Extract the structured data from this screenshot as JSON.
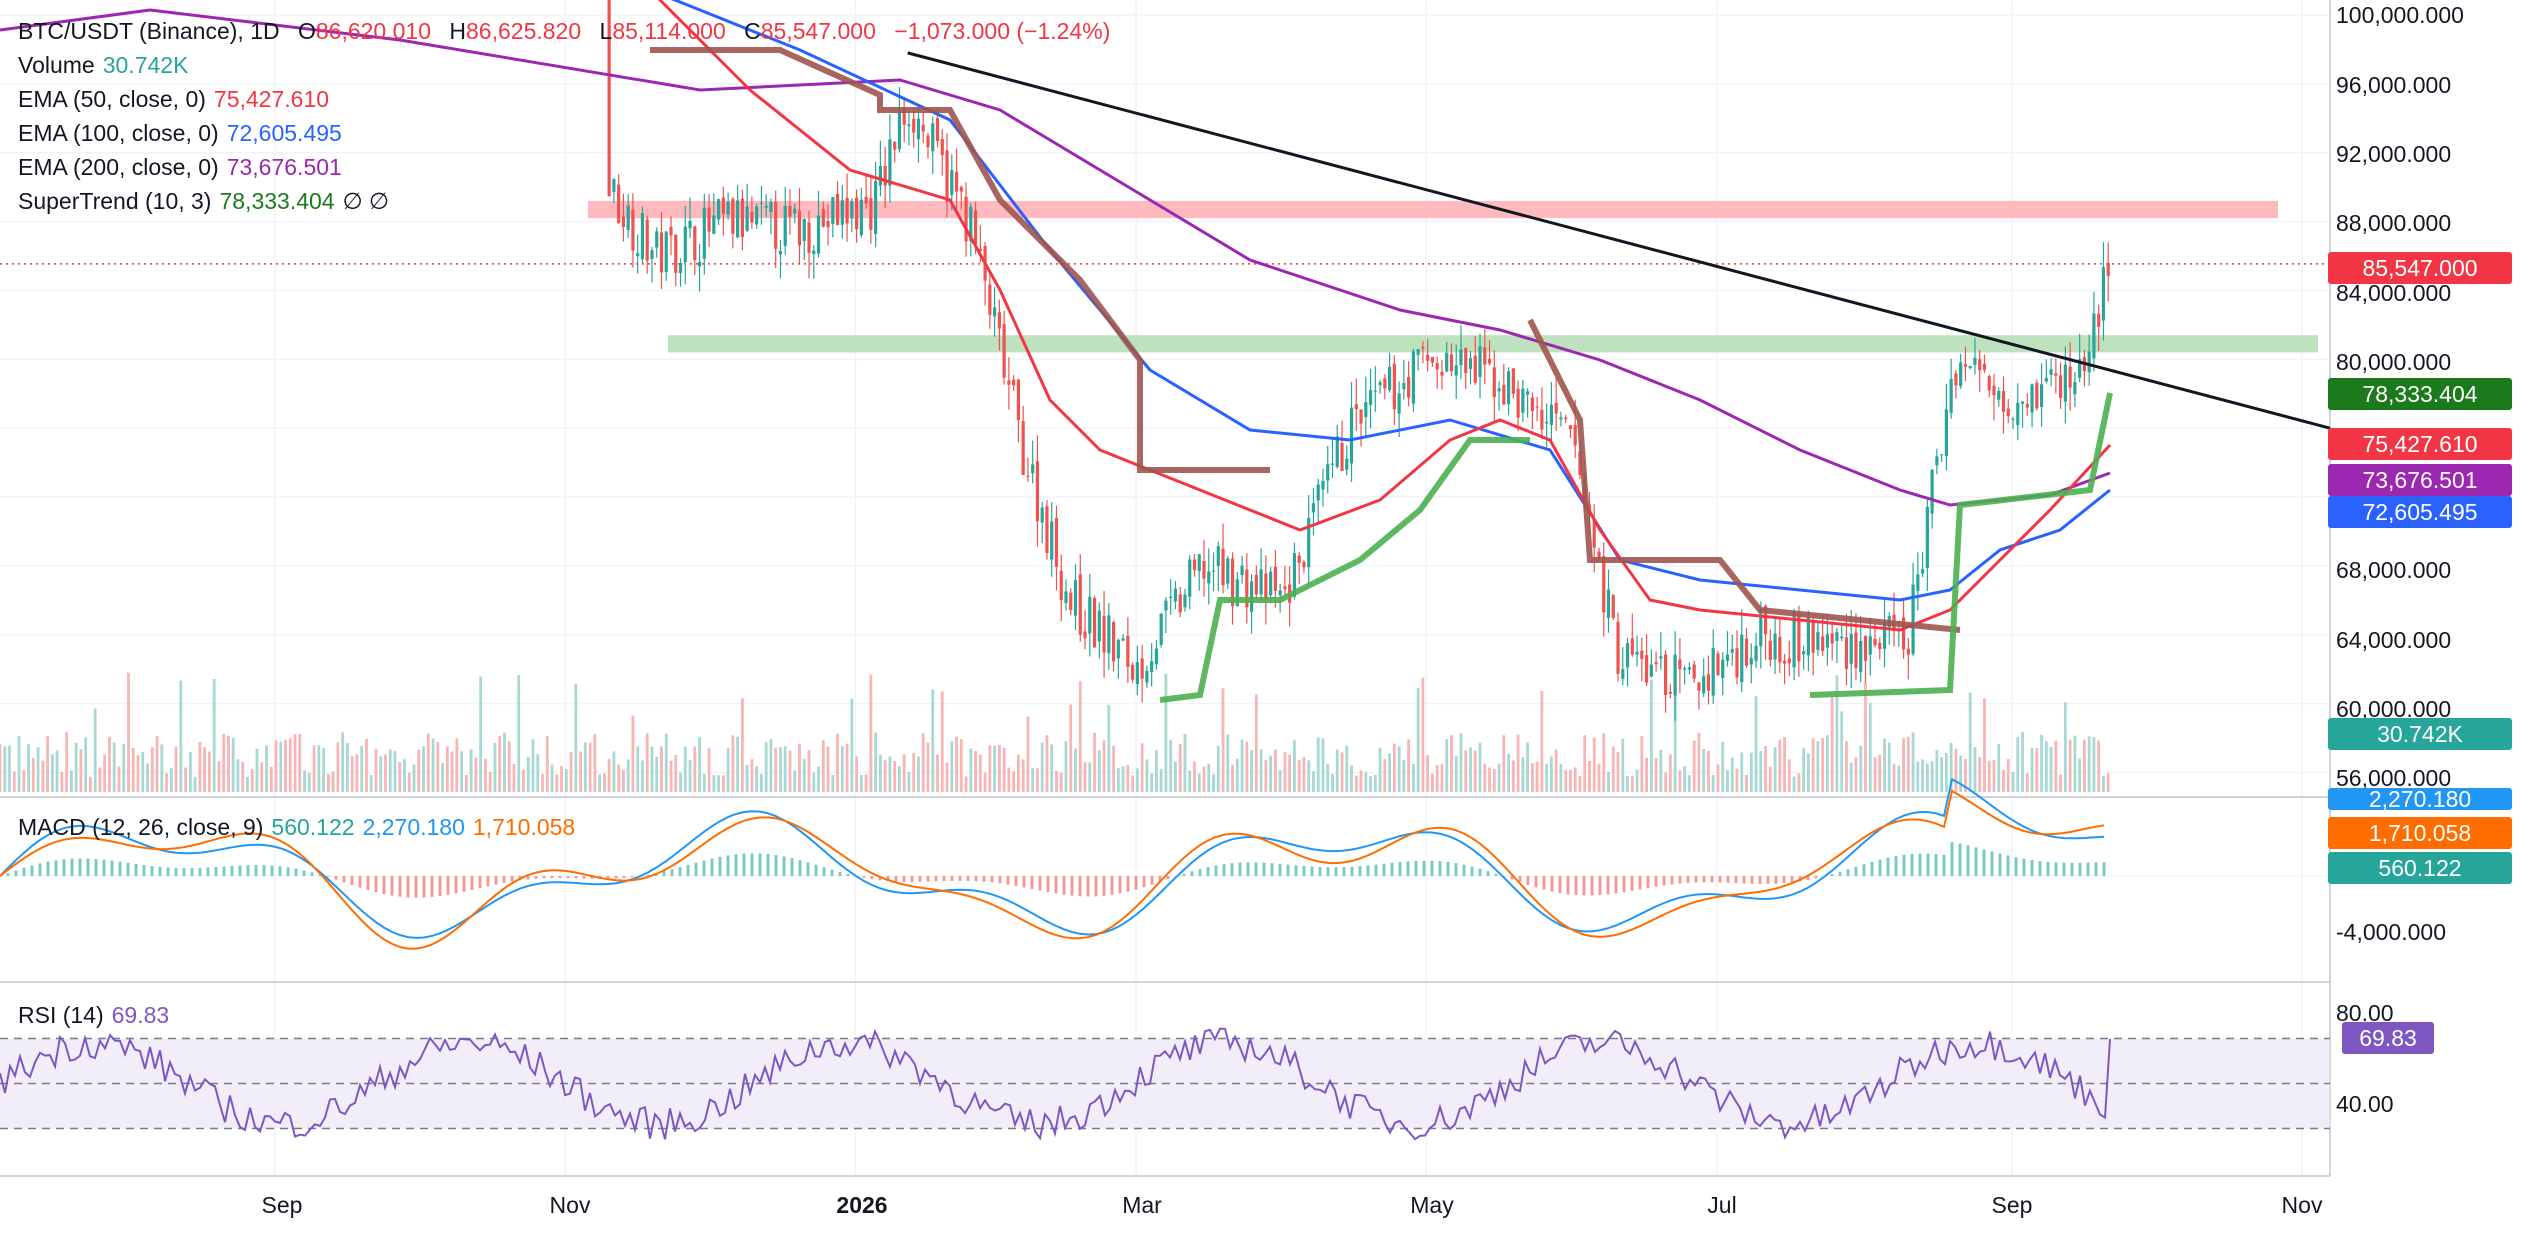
{
  "header": {
    "symbol": "BTC/USDT (Binance), 1D",
    "open_label": "O",
    "open": "86,620.010",
    "high_label": "H",
    "high": "86,625.820",
    "low_label": "L",
    "low": "85,114.000",
    "close_label": "C",
    "close": "85,547.000",
    "change": "−1,073.000 (−1.24%)"
  },
  "indicators": {
    "volume": {
      "label": "Volume",
      "value": "30.742K",
      "color": "#26a69a"
    },
    "ema50": {
      "label": "EMA (50, close, 0)",
      "value": "75,427.610",
      "color": "#f23645"
    },
    "ema100": {
      "label": "EMA (100, close, 0)",
      "value": "72,605.495",
      "color": "#2962ff"
    },
    "ema200": {
      "label": "EMA (200, close, 0)",
      "value": "73,676.501",
      "color": "#9c27b0"
    },
    "supertrend": {
      "label": "SuperTrend (10, 3)",
      "value": "78,333.404",
      "extra": "∅ ∅",
      "color": "#1b7a1b"
    },
    "macd": {
      "label": "MACD (12, 26, close, 9)",
      "hist": "560.122",
      "macd": "2,270.180",
      "signal": "1,710.058"
    },
    "rsi": {
      "label": "RSI (14)",
      "value": "69.83",
      "color": "#7e57c2"
    }
  },
  "price_axis": {
    "ticks": [
      "100,000.000",
      "96,000.000",
      "92,000.000",
      "88,000.000",
      "84,000.000",
      "80,000.000",
      "68,000.000",
      "64,000.000",
      "60,000.000",
      "56,000.000"
    ],
    "labels": {
      "last": {
        "text": "85,547.000",
        "color": "#f23645"
      },
      "supertrend": {
        "text": "78,333.404",
        "color": "#1b7a1b"
      },
      "ema50": {
        "text": "75,427.610",
        "color": "#f23645"
      },
      "ema200": {
        "text": "73,676.501",
        "color": "#9c27b0"
      },
      "ema100": {
        "text": "72,605.495",
        "color": "#2962ff"
      },
      "volume": {
        "text": "30.742K",
        "color": "#26a69a"
      }
    }
  },
  "macd_axis": {
    "ticks": [
      "-4,000.000"
    ],
    "labels": {
      "macd": {
        "text": "2,270.180",
        "color": "#2196f3"
      },
      "signal": {
        "text": "1,710.058",
        "color": "#ff6d00"
      },
      "hist": {
        "text": "560.122",
        "color": "#26a69a"
      }
    }
  },
  "rsi_axis": {
    "ticks": [
      "80.00",
      "40.00"
    ],
    "label": {
      "text": "69.83",
      "color": "#7e57c2"
    }
  },
  "time_axis": [
    "Sep",
    "Nov",
    "2026",
    "Mar",
    "May",
    "Jul",
    "Sep",
    "Nov"
  ],
  "chart_data": {
    "type": "line",
    "title": "BTC/USDT (Binance), 1D",
    "price_range": [
      54000,
      102000
    ],
    "price_series": {
      "x": [
        "2025-11-10",
        "2025-11-20",
        "2025-12-05",
        "2025-12-20",
        "2026-01-05",
        "2026-01-12",
        "2026-01-25",
        "2026-02-05",
        "2026-02-15",
        "2026-03-01",
        "2026-03-15",
        "2026-04-01",
        "2026-04-15",
        "2026-05-01",
        "2026-05-15",
        "2026-06-01",
        "2026-06-10",
        "2026-06-25",
        "2026-07-10",
        "2026-07-25",
        "2026-08-10",
        "2026-08-20",
        "2026-09-01",
        "2026-09-15",
        "2026-09-22"
      ],
      "close": [
        90000,
        86000,
        88000,
        87500,
        89000,
        95000,
        88000,
        75000,
        66000,
        62000,
        68000,
        66000,
        76000,
        80000,
        79000,
        75000,
        63000,
        61000,
        64000,
        63500,
        63500,
        80000,
        78000,
        79000,
        85547
      ]
    },
    "ema_lines": [
      {
        "name": "EMA (50, close, 0)",
        "color": "#f23645",
        "last": 75427.61
      },
      {
        "name": "EMA (100, close, 0)",
        "color": "#2962ff",
        "last": 72605.495
      },
      {
        "name": "EMA (200, close, 0)",
        "color": "#9c27b0",
        "last": 73676.501
      }
    ],
    "supertrend_last": 78333.404,
    "zones": [
      {
        "kind": "resistance",
        "from": 88200,
        "to": 89200,
        "color": "#ffb3b8"
      },
      {
        "kind": "support",
        "from": 80400,
        "to": 81400,
        "color": "#b6dfb6"
      }
    ],
    "trendline": {
      "from": {
        "date": "2026-01-12",
        "price": 97800
      },
      "to": {
        "date": "2026-10-29",
        "price": 76000
      }
    },
    "macd_series": {
      "macd_last": 2270.18,
      "signal_last": 1710.058,
      "hist_last": 560.122
    },
    "rsi_series": {
      "last": 69.83,
      "levels": [
        70,
        50,
        30
      ]
    }
  }
}
